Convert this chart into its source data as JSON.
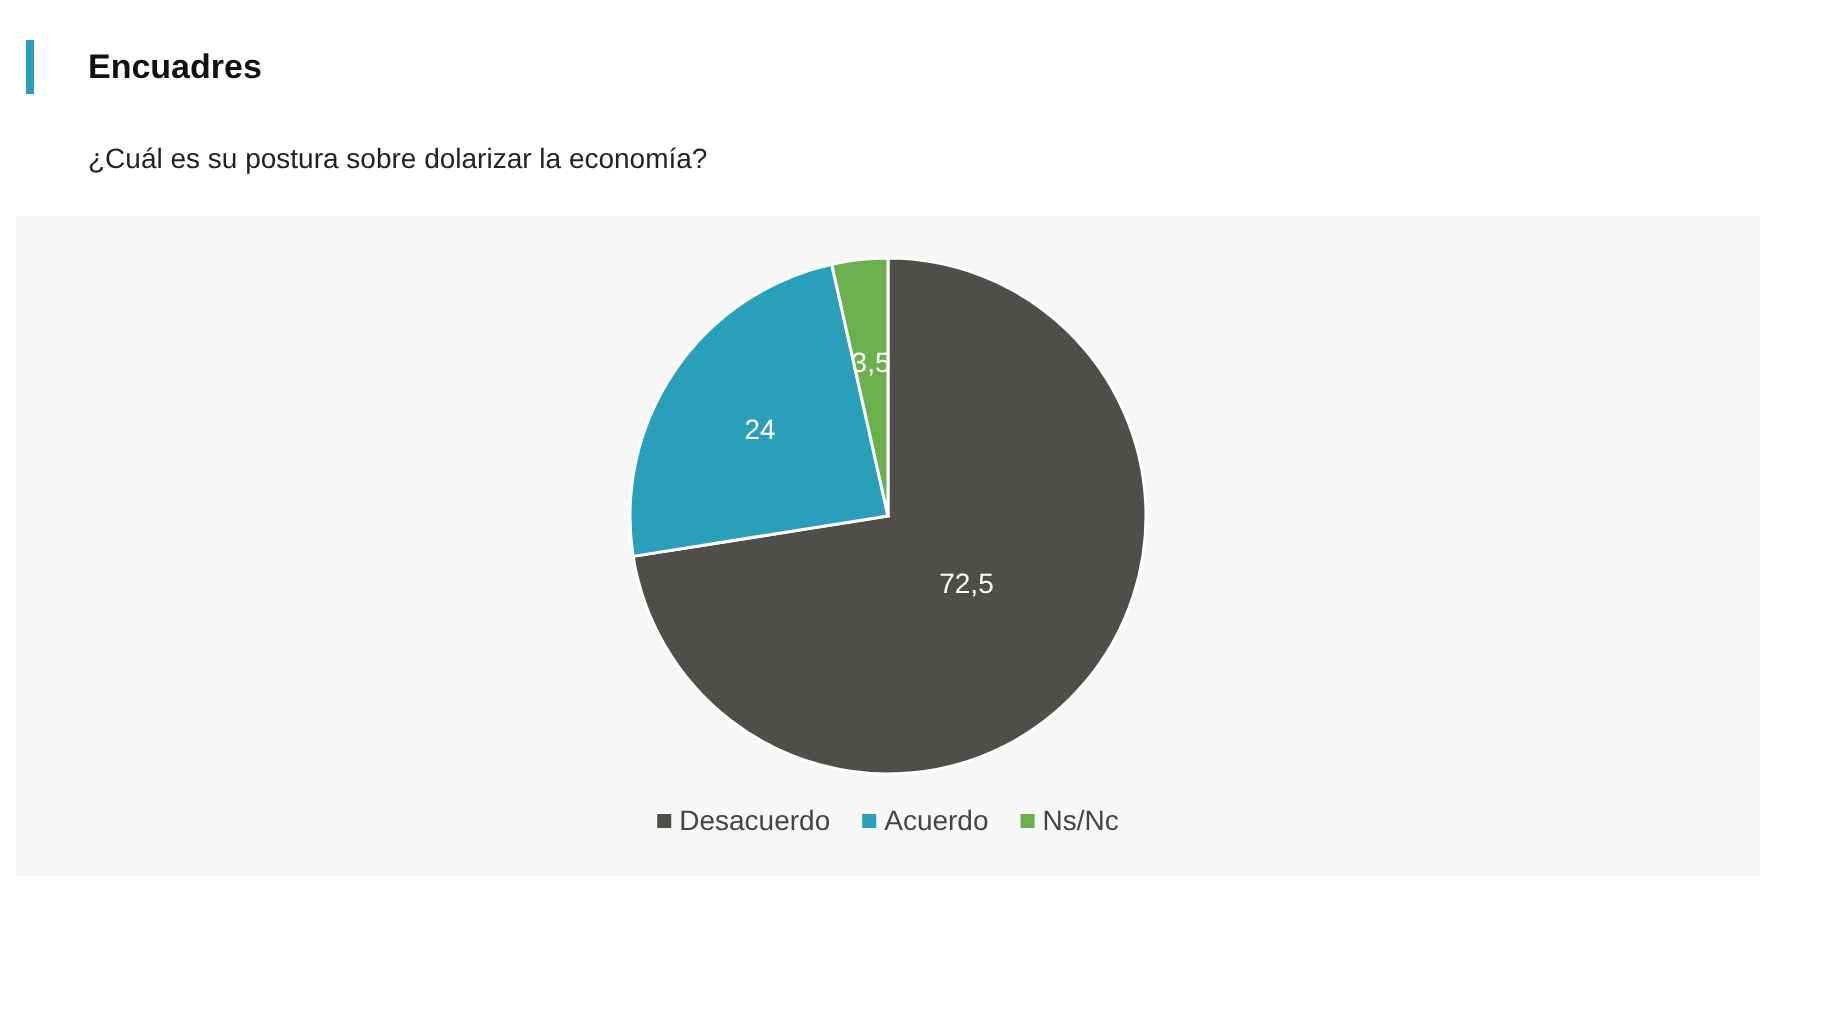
{
  "chart_data": {
    "type": "pie",
    "title": "Encuadres",
    "subtitle": "¿Cuál es su postura sobre dolarizar la economía?",
    "categories": [
      "Desacuerdo",
      "Acuerdo",
      "Ns/Nc"
    ],
    "values": [
      72.5,
      24,
      3.5
    ],
    "colors": [
      "#4f4e4a",
      "#2a9fba",
      "#6ab04c"
    ],
    "value_labels": [
      "72,5",
      "24",
      "3,5"
    ],
    "legend": "bottom"
  }
}
